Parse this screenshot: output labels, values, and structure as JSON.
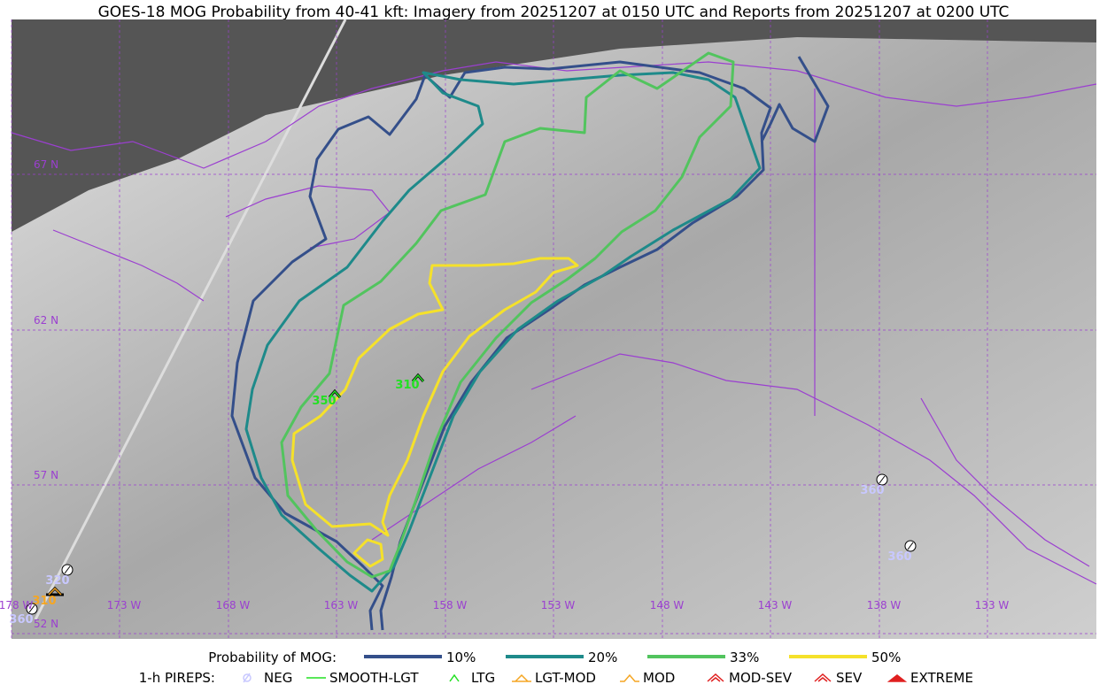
{
  "header": {
    "title": "GOES-18 MOG Probability from 40-41 kft: Imagery from 20251207 at 0150 UTC and Reports from 20251207 at 0200 UTC"
  },
  "map": {
    "lat_labels": [
      "67 N",
      "62 N",
      "57 N",
      "52 N"
    ],
    "lon_labels": [
      "178 W",
      "173 W",
      "168 W",
      "163 W",
      "158 W",
      "153 W",
      "148 W",
      "143 W",
      "138 W",
      "133 W"
    ],
    "pireps": [
      {
        "label": "320"
      },
      {
        "label": "310"
      },
      {
        "label": "360"
      },
      {
        "label": "360"
      },
      {
        "label": "360"
      },
      {
        "label": "350"
      },
      {
        "label": "310"
      }
    ]
  },
  "legend": {
    "mog_title": "Probability of MOG:",
    "mog_items": [
      "10%",
      "20%",
      "33%",
      "50%"
    ],
    "pirep_title": "1-h PIREPS:",
    "pirep_items": [
      "NEG",
      "SMOOTH-LGT",
      "LTG",
      "LGT-MOD",
      "MOD",
      "MOD-SEV",
      "SEV",
      "EXTREME"
    ]
  }
}
